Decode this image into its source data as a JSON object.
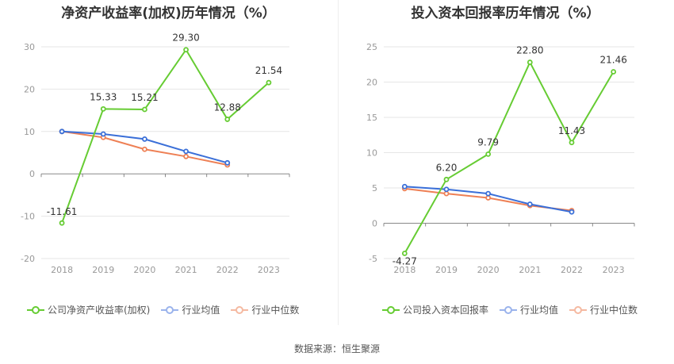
{
  "chart_data": [
    {
      "type": "line",
      "title": "净资产收益率(加权)历年情况（%）",
      "categories": [
        "2018",
        "2019",
        "2020",
        "2021",
        "2022",
        "2023"
      ],
      "ylim": [
        -20,
        30
      ],
      "yticks": [
        30,
        20,
        10,
        0,
        -10,
        -20
      ],
      "series": [
        {
          "name": "公司净资产收益率(加权)",
          "color": "#66cc33",
          "values": [
            -11.61,
            15.33,
            15.21,
            29.3,
            12.88,
            21.54
          ],
          "labels": [
            "-11.61",
            "15.33",
            "15.21",
            "29.30",
            "12.88",
            "21.54"
          ]
        },
        {
          "name": "行业均值",
          "color": "#3a6fd8",
          "values": [
            10.0,
            9.4,
            8.2,
            5.3,
            2.6,
            null
          ]
        },
        {
          "name": "行业中位数",
          "color": "#ee8055",
          "values": [
            10.0,
            8.6,
            5.8,
            4.1,
            2.1,
            null
          ]
        }
      ]
    },
    {
      "type": "line",
      "title": "投入资本回报率历年情况（%）",
      "categories": [
        "2018",
        "2019",
        "2020",
        "2021",
        "2022",
        "2023"
      ],
      "ylim": [
        -5,
        25
      ],
      "yticks": [
        25,
        20,
        15,
        10,
        5,
        0,
        -5
      ],
      "series": [
        {
          "name": "公司投入资本回报率",
          "color": "#66cc33",
          "values": [
            -4.27,
            6.2,
            9.79,
            22.8,
            11.43,
            21.46
          ],
          "labels": [
            "-4.27",
            "6.20",
            "9.79",
            "22.80",
            "11.43",
            "21.46"
          ]
        },
        {
          "name": "行业均值",
          "color": "#3a6fd8",
          "values": [
            5.2,
            4.8,
            4.2,
            2.7,
            1.6,
            null
          ]
        },
        {
          "name": "行业中位数",
          "color": "#ee8055",
          "values": [
            4.9,
            4.2,
            3.6,
            2.5,
            1.8,
            null
          ]
        }
      ]
    }
  ],
  "source": "数据来源：恒生聚源"
}
